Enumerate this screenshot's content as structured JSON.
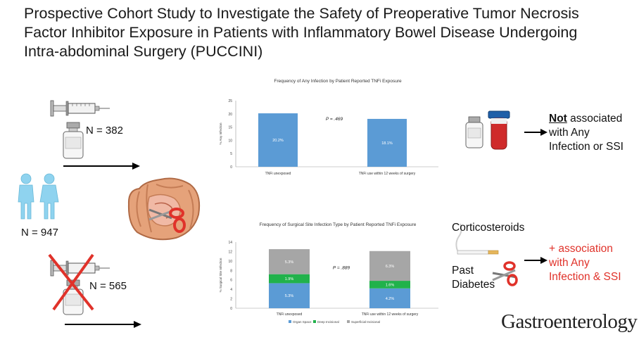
{
  "title": "Prospective Cohort Study to Investigate the Safety of Preoperative Tumor Necrosis Factor Inhibitor Exposure in Patients with Inflammatory Bowel Disease Undergoing Intra-abdominal Surgery (PUCCINI)",
  "cohort": {
    "exposed_n": "N = 382",
    "total_n": "N = 947",
    "unexposed_n": "N = 565"
  },
  "findings": {
    "not_word": "Not",
    "not_rest1": " associated",
    "not_line2": "with Any",
    "not_line3": "Infection or SSI",
    "risk_label1": "Corticosteroids",
    "risk_label2a": "Past",
    "risk_label2b": "Diabetes",
    "plus_line1": "+ association",
    "plus_line2": "with Any",
    "plus_line3": "Infection & SSI"
  },
  "journal": "Gastroenterology",
  "colors": {
    "blue": "#5b9bd5",
    "green": "#21b24b",
    "gray": "#a6a6a6",
    "red": "#e0322a"
  },
  "chart_data": [
    {
      "type": "bar",
      "title": "Frequency of Any Infection by Patient Reported TNFi Exposure",
      "categories": [
        "TNFi unexposed",
        "TNFi use within 12 weeks of surgery"
      ],
      "values": [
        20.2,
        18.1
      ],
      "value_labels": [
        "20.2%",
        "18.1%"
      ],
      "ylabel": "% Any Infection",
      "ylim": [
        0,
        25
      ],
      "yticks": [
        "0",
        "5",
        "10",
        "15",
        "20",
        "25"
      ],
      "annotation": "P = .469"
    },
    {
      "type": "bar",
      "stacked": true,
      "title": "Frequency of Surgical Site Infection Type by Patient Reported TNFi Exposure",
      "categories": [
        "TNFi unexposed",
        "TNFi use within 12 weeks of surgery"
      ],
      "ylabel": "% Surgical Site Infection",
      "ylim": [
        0,
        14
      ],
      "yticks": [
        "0",
        "2",
        "4",
        "6",
        "8",
        "10",
        "12",
        "14"
      ],
      "annotation": "P = .889",
      "series": [
        {
          "name": "Organ Space",
          "values": [
            5.3,
            4.2
          ],
          "labels": [
            "5.3%",
            "4.2%"
          ]
        },
        {
          "name": "Deep Incisional",
          "values": [
            1.9,
            1.6
          ],
          "labels": [
            "1.9%",
            "1.6%"
          ]
        },
        {
          "name": "Superficial Incisional",
          "values": [
            5.3,
            6.3
          ],
          "labels": [
            "5.3%",
            "6.3%"
          ]
        }
      ]
    }
  ]
}
